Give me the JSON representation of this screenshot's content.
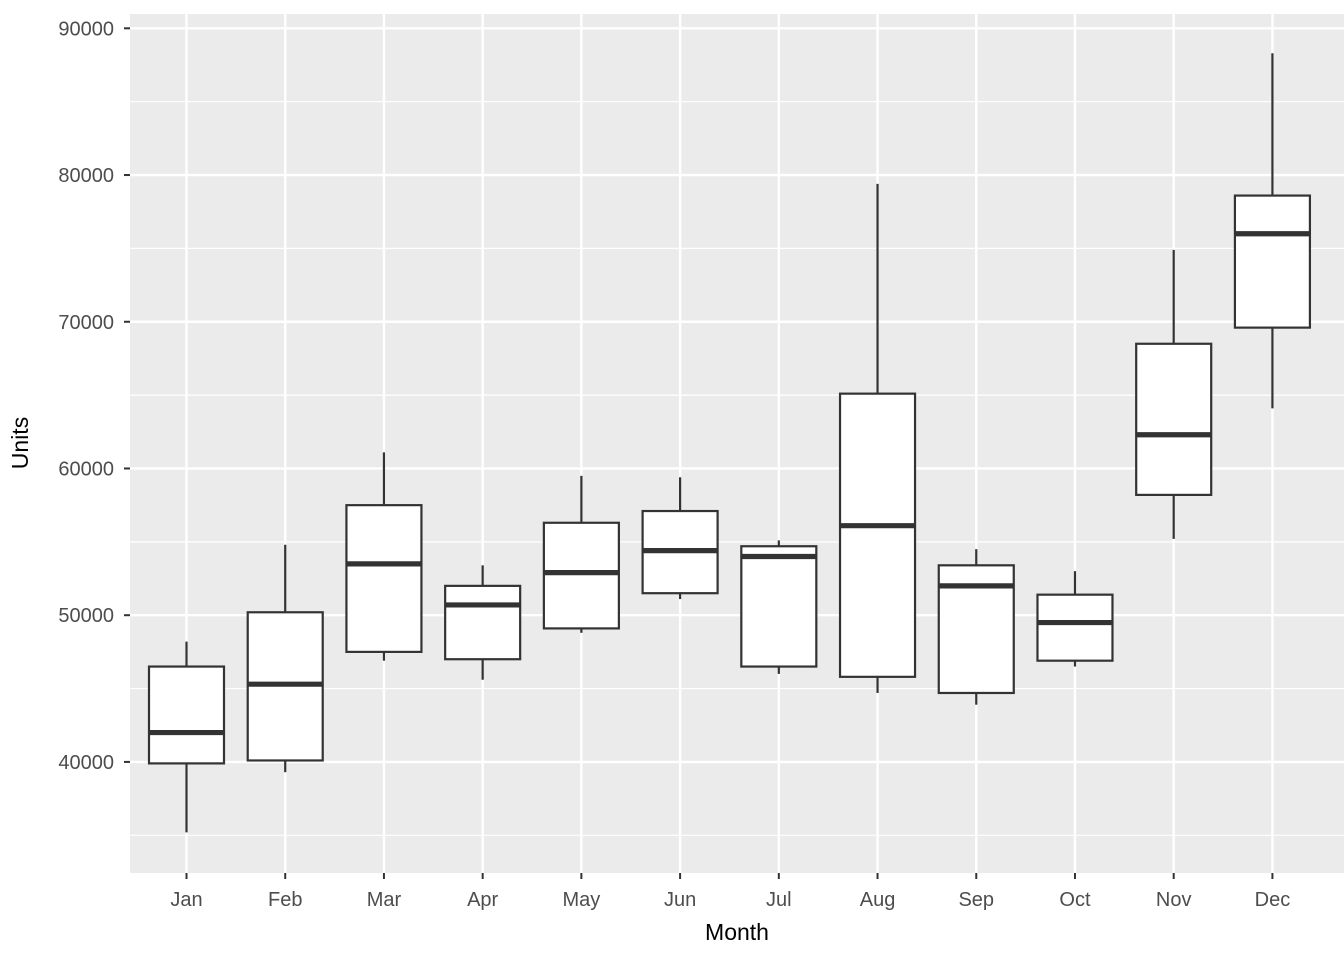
{
  "chart_data": {
    "type": "boxplot",
    "title": "",
    "xlabel": "Month",
    "ylabel": "Units",
    "legend": "none",
    "grid": "on",
    "categories": [
      "Jan",
      "Feb",
      "Mar",
      "Apr",
      "May",
      "Jun",
      "Jul",
      "Aug",
      "Sep",
      "Oct",
      "Nov",
      "Dec"
    ],
    "boxes": [
      {
        "category": "Jan",
        "min": 35200,
        "q1": 39900,
        "median": 42000,
        "q3": 46500,
        "max": 48200
      },
      {
        "category": "Feb",
        "min": 39300,
        "q1": 40100,
        "median": 45300,
        "q3": 50200,
        "max": 54800
      },
      {
        "category": "Mar",
        "min": 46900,
        "q1": 47500,
        "median": 53500,
        "q3": 57500,
        "max": 61100
      },
      {
        "category": "Apr",
        "min": 45600,
        "q1": 47000,
        "median": 50700,
        "q3": 52000,
        "max": 53400
      },
      {
        "category": "May",
        "min": 48800,
        "q1": 49100,
        "median": 52900,
        "q3": 56300,
        "max": 59500
      },
      {
        "category": "Jun",
        "min": 51100,
        "q1": 51500,
        "median": 54400,
        "q3": 57100,
        "max": 59400
      },
      {
        "category": "Jul",
        "min": 46000,
        "q1": 46500,
        "median": 54000,
        "q3": 54700,
        "max": 55100
      },
      {
        "category": "Aug",
        "min": 44700,
        "q1": 45800,
        "median": 56100,
        "q3": 65100,
        "max": 79400
      },
      {
        "category": "Sep",
        "min": 43900,
        "q1": 44700,
        "median": 52000,
        "q3": 53400,
        "max": 54500
      },
      {
        "category": "Oct",
        "min": 46500,
        "q1": 46900,
        "median": 49500,
        "q3": 51400,
        "max": 53000
      },
      {
        "category": "Nov",
        "min": 55200,
        "q1": 58200,
        "median": 62300,
        "q3": 68500,
        "max": 74900
      },
      {
        "category": "Dec",
        "min": 64100,
        "q1": 69600,
        "median": 76000,
        "q3": 78600,
        "max": 88300
      }
    ],
    "y_axis": {
      "ticks": [
        40000,
        50000,
        60000,
        70000,
        80000,
        90000
      ],
      "tick_labels": [
        "40000",
        "50000",
        "60000",
        "70000",
        "80000",
        "90000"
      ],
      "minor_ticks": [
        35000,
        45000,
        55000,
        65000,
        75000,
        85000
      ],
      "range": [
        32430,
        90975
      ]
    },
    "colors": {
      "panel_background": "#ebebeb",
      "grid_line": "#ffffff",
      "box_fill": "#ffffff",
      "box_stroke": "#333333",
      "axis_tick_mark": "#333333",
      "tick_label_text": "#4d4d4d",
      "axis_title_text": "#000000",
      "page_background": "#ffffff"
    }
  }
}
